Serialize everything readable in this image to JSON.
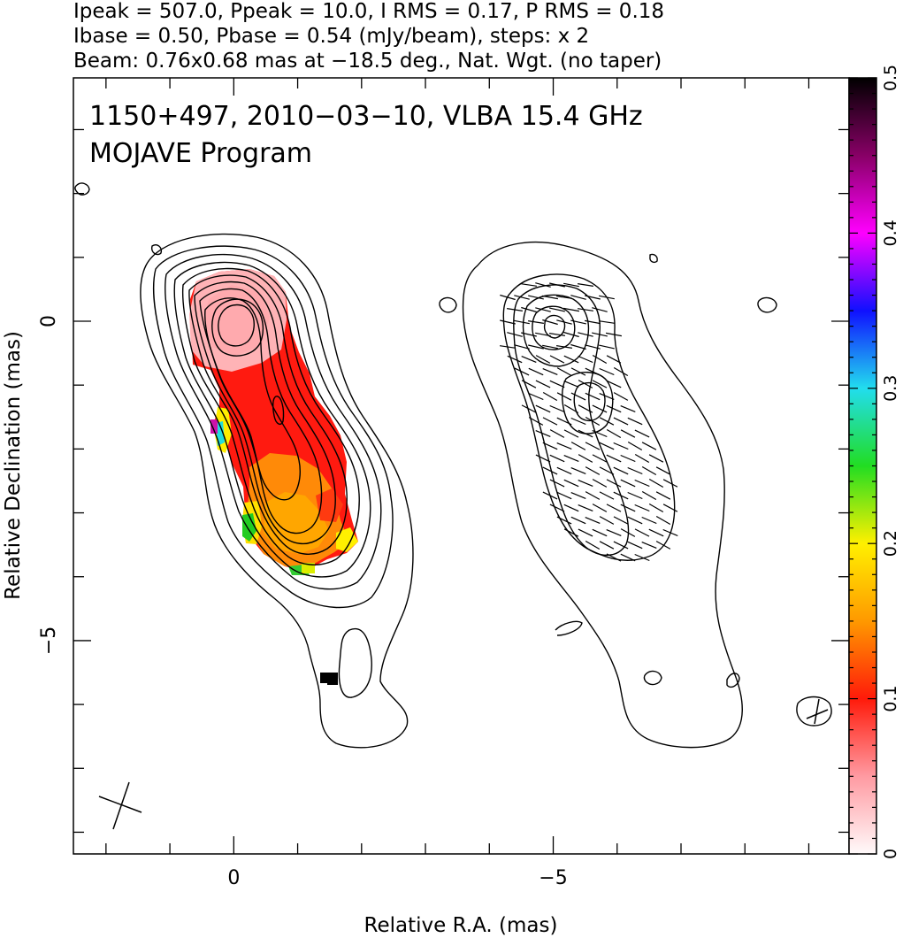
{
  "header": {
    "line1": "Ipeak = 507.0, Ppeak = 10.0, I RMS = 0.17, P RMS = 0.18",
    "line2": "Ibase = 0.50, Pbase = 0.54 (mJy/beam), steps: x 2",
    "line3": "Beam: 0.76x0.68 mas at −18.5 deg., Nat. Wgt. (no taper)"
  },
  "chart_data": {
    "type": "heatmap",
    "title": "1150+497, 2010−03−10, VLBA 15.4 GHz",
    "subtitle": "MOJAVE Program",
    "xlabel": "Relative R.A. (mas)",
    "ylabel": "Relative Declination (mas)",
    "xlim": [
      2.51,
      -9.63
    ],
    "ylim": [
      -8.34,
      3.81
    ],
    "x_ticks": [
      {
        "value": 0,
        "label": "0"
      },
      {
        "value": -5,
        "label": "−5"
      }
    ],
    "y_ticks": [
      {
        "value": 0,
        "label": "0"
      },
      {
        "value": -5,
        "label": "−5"
      }
    ],
    "panels": [
      {
        "name": "",
        "offset_ra": 0,
        "content": "total intensity contours with fractional polarization color map"
      },
      {
        "name": "",
        "offset_ra": -5,
        "content": "polarized intensity contours with EVPA ticks"
      }
    ],
    "contour_base_mJy_per_beam": 0.5,
    "contour_step_factor": 2,
    "core": {
      "ra": 0,
      "dec": 0
    },
    "colorbar": {
      "min": 0,
      "max": 0.5,
      "ticks": [
        {
          "value": 0,
          "label": "0"
        },
        {
          "value": 0.1,
          "label": "0.1"
        },
        {
          "value": 0.2,
          "label": "0.2"
        },
        {
          "value": 0.3,
          "label": "0.3"
        },
        {
          "value": 0.4,
          "label": "0.4"
        },
        {
          "value": 0.5,
          "label": "0.5"
        }
      ],
      "stops": [
        {
          "value": 0.0,
          "color": "#fffafa"
        },
        {
          "value": 0.05,
          "color": "#ff9aa2"
        },
        {
          "value": 0.1,
          "color": "#ff1a0a"
        },
        {
          "value": 0.15,
          "color": "#ff9900"
        },
        {
          "value": 0.2,
          "color": "#fff000"
        },
        {
          "value": 0.25,
          "color": "#22dd22"
        },
        {
          "value": 0.3,
          "color": "#22ddee"
        },
        {
          "value": 0.35,
          "color": "#1010ff"
        },
        {
          "value": 0.4,
          "color": "#ff00ff"
        },
        {
          "value": 0.45,
          "color": "#880066"
        },
        {
          "value": 0.5,
          "color": "#000000"
        }
      ]
    },
    "colorbar_label": ""
  }
}
